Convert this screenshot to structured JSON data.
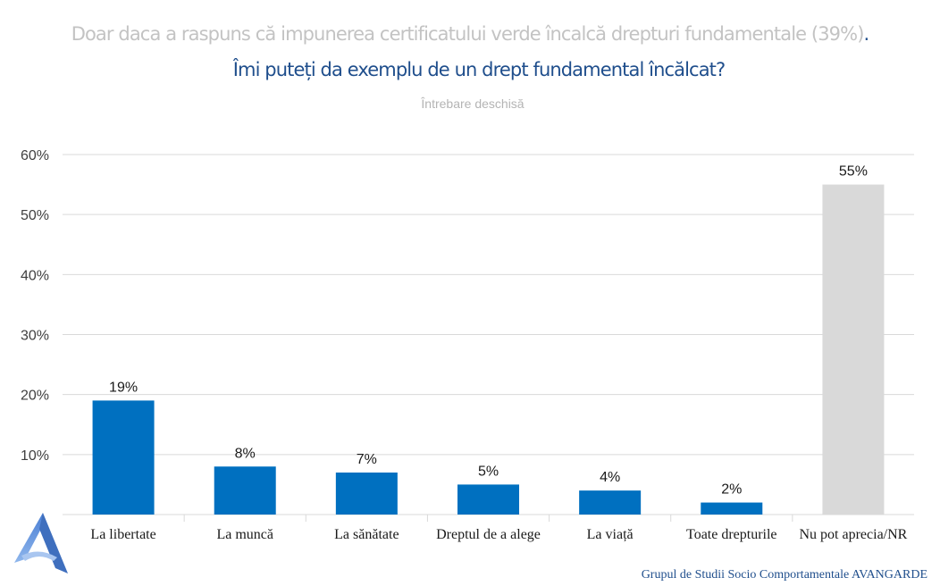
{
  "header": {
    "question_intro": "Doar daca a raspuns că impunerea certificatului verde încalcă drepturi fundamentale (39%)",
    "question_intro_end": ".",
    "question": "Îmi puteți da exemplu de un drept fundamental încălcat?",
    "note": "Întrebare deschisă"
  },
  "chart_data": {
    "type": "bar",
    "categories": [
      "La libertate",
      "La muncă",
      "La sănătate",
      "Dreptul de a alege",
      "La viață",
      "Toate drepturile",
      "Nu pot aprecia/NR"
    ],
    "values": [
      19,
      8,
      7,
      5,
      4,
      2,
      55
    ],
    "value_labels": [
      "19%",
      "8%",
      "7%",
      "5%",
      "4%",
      "2%",
      "55%"
    ],
    "bar_colors": [
      "#0070c0",
      "#0070c0",
      "#0070c0",
      "#0070c0",
      "#0070c0",
      "#0070c0",
      "#d9d9d9"
    ],
    "ylim": [
      0,
      60
    ],
    "yticks": [
      10,
      20,
      30,
      40,
      50,
      60
    ],
    "ytick_labels": [
      "10%",
      "20%",
      "30%",
      "40%",
      "50%",
      "60%"
    ],
    "grid": true,
    "xlabel": "",
    "ylabel": ""
  },
  "footer": {
    "credit": "Grupul de Studii Socio Comportamentale AVANGARDE"
  },
  "colors": {
    "accent": "#0070c0",
    "neutral": "#d9d9d9",
    "title_blue": "#1f4e8c",
    "title_grey": "#c3c3c3"
  },
  "logo": {
    "icon": "avangarde-logo-icon"
  }
}
